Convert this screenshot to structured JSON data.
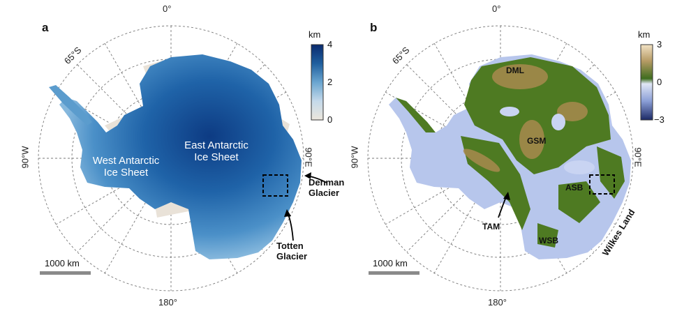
{
  "panel_a": {
    "label": "a",
    "lon_labels": {
      "top": "0°",
      "bottom": "180°",
      "left": "90°W",
      "right": "90°E"
    },
    "lat_label": "65°S",
    "ice_sheet_labels": {
      "west": "West Antarctic\nIce Sheet",
      "east": "East Antarctic\nIce Sheet"
    },
    "annotations": {
      "denman": "Denman\nGlacier",
      "totten": "Totten\nGlacier"
    },
    "colorbar": {
      "unit": "km",
      "ticks": [
        "4",
        "2",
        "0"
      ],
      "range": [
        0,
        4
      ],
      "colors": [
        "#ece6dc",
        "#c4d9ea",
        "#6aa5d0",
        "#1f5f9e",
        "#0a2a6e"
      ]
    },
    "scalebar_label": "1000 km",
    "colors": {
      "land": "#3f86c0",
      "interior": "#0f3f86",
      "ice_shelf": "#e9e2d8"
    }
  },
  "panel_b": {
    "label": "b",
    "lon_labels": {
      "top": "0°",
      "bottom": "180°",
      "left": "90°W",
      "right": "90°E"
    },
    "lat_label": "65°S",
    "regions": {
      "dml": "DML",
      "gsm": "GSM",
      "asb": "ASB",
      "tam": "TAM",
      "wsb": "WSB",
      "wilkes": "Wilkes Land"
    },
    "colorbar": {
      "unit": "km",
      "ticks": [
        "3",
        "0",
        "−3"
      ],
      "range": [
        -3,
        3
      ],
      "colors": [
        "#1c2a66",
        "#8b9fd6",
        "#e0e6f5",
        "#3f6d1e",
        "#b59a64",
        "#f2e2c4"
      ]
    },
    "scalebar_label": "1000 km",
    "colors": {
      "highland": "#4e7a22",
      "lowland": "#b7c6ec",
      "peaks": "#a88a4e"
    }
  }
}
